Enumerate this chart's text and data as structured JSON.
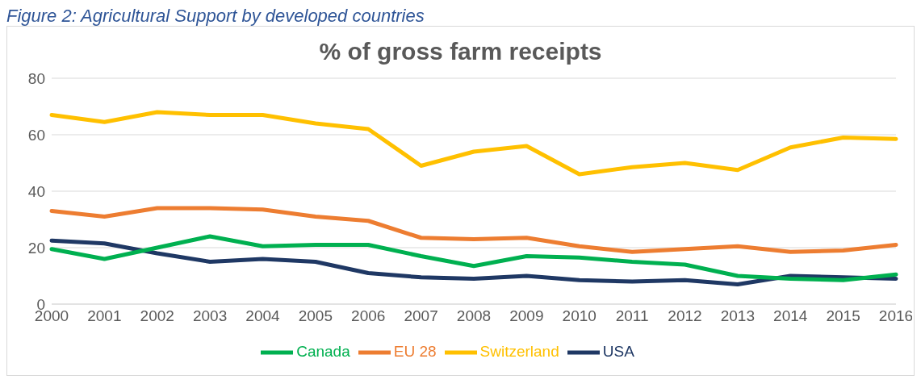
{
  "chart_data": {
    "type": "line",
    "title": "% of gross farm receipts",
    "annotations": [
      "Figure 2: Agricultural Support by developed countries"
    ],
    "categories": [
      "2000",
      "2001",
      "2002",
      "2003",
      "2004",
      "2005",
      "2006",
      "2007",
      "2008",
      "2009",
      "2010",
      "2011",
      "2012",
      "2013",
      "2014",
      "2015",
      "2016"
    ],
    "series": [
      {
        "name": "USA",
        "color": "#1f3864",
        "values": [
          22.5,
          21.5,
          18,
          15,
          16,
          15,
          11,
          9.5,
          9,
          10,
          8.5,
          8,
          8.5,
          7,
          10,
          9.5,
          9
        ]
      },
      {
        "name": "EU 28",
        "color": "#ed7d31",
        "values": [
          33,
          31,
          34,
          34,
          33.5,
          31,
          29.5,
          23.5,
          23,
          23.5,
          20.5,
          18.5,
          19.5,
          20.5,
          18.5,
          19,
          21
        ]
      },
      {
        "name": "Canada",
        "color": "#00b050",
        "values": [
          19.5,
          16,
          20,
          24,
          20.5,
          21,
          21,
          17,
          13.5,
          17,
          16.5,
          15,
          14,
          10,
          9,
          8.5,
          10.5
        ]
      },
      {
        "name": "Switzerland",
        "color": "#ffc000",
        "values": [
          67,
          64.5,
          68,
          67,
          67,
          64,
          62,
          49,
          54,
          56,
          46,
          48.5,
          50,
          47.5,
          55.5,
          59,
          58.5
        ]
      }
    ],
    "ylim": [
      0,
      80
    ],
    "yticks": [
      0,
      20,
      40,
      60,
      80
    ],
    "grid": "y",
    "legend": "bottom",
    "marker": "none",
    "line_style": "solid"
  }
}
